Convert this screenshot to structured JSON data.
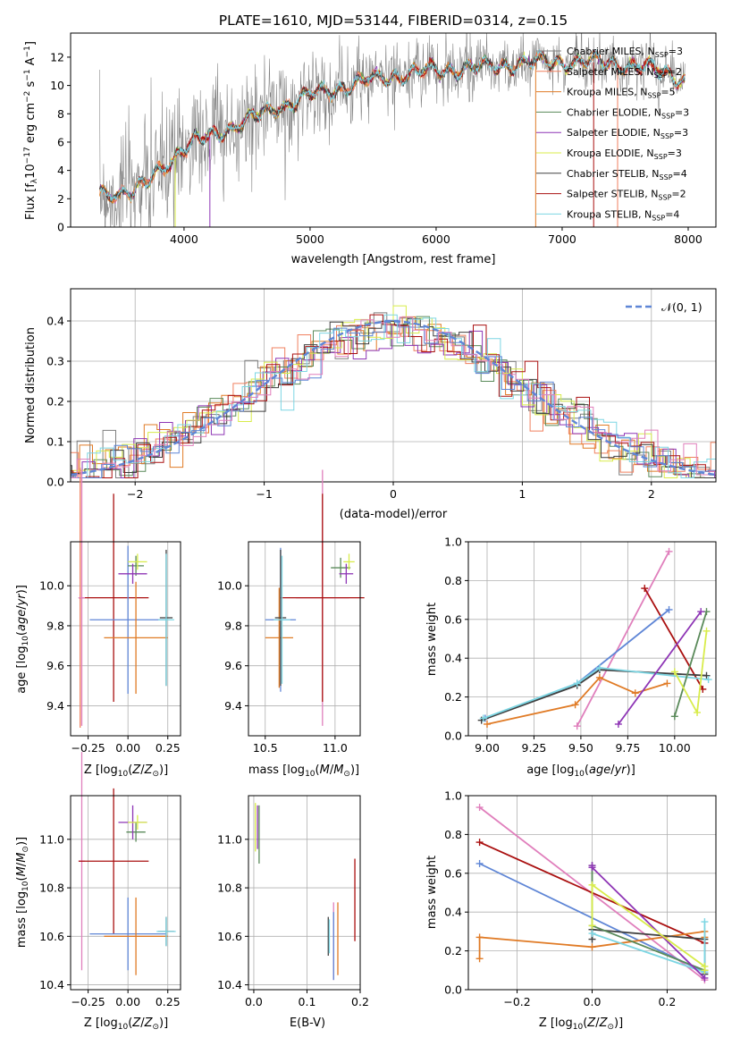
{
  "colors": {
    "Chabrier MILES": "#7f7f7f",
    "Salpeter MILES": "#f0805f",
    "Kroupa MILES": "#e07b26",
    "Chabrier ELODIE": "#5a8a5a",
    "Salpeter ELODIE": "#8e35b5",
    "Kroupa ELODIE": "#d8ec4a",
    "Chabrier STELIB": "#404040",
    "Salpeter STELIB": "#aa1010",
    "Kroupa STELIB": "#7dd6e3",
    "model_blue": "#5f86d6",
    "model_pink": "#e07fbc",
    "normal": "#5f86d6"
  },
  "chart_data": [
    {
      "id": "spectrum",
      "type": "line",
      "title": "PLATE=1610, MJD=53144, FIBERID=0314, z=0.15",
      "xlabel": "wavelength [Angstrom, rest frame]",
      "ylabel": "Flux [f_λ10^-17 erg cm^-2 s^-1 A^-1]",
      "xlim": [
        3100,
        8220
      ],
      "ylim": [
        0,
        13.7
      ],
      "xticks": [
        "4000",
        "5000",
        "6000",
        "7000",
        "8000"
      ],
      "yticks": [
        "0",
        "2",
        "4",
        "6",
        "8",
        "10",
        "12"
      ],
      "grid": false,
      "legend_position": "top-right",
      "legend": [
        {
          "model": "Chabrier MILES",
          "nssp": "3"
        },
        {
          "model": "Salpeter MILES",
          "nssp": "2"
        },
        {
          "model": "Kroupa MILES",
          "nssp": "5"
        },
        {
          "model": "Chabrier ELODIE",
          "nssp": "3"
        },
        {
          "model": "Salpeter ELODIE",
          "nssp": "3"
        },
        {
          "model": "Kroupa ELODIE",
          "nssp": "3"
        },
        {
          "model": "Chabrier STELIB",
          "nssp": "4"
        },
        {
          "model": "Salpeter STELIB",
          "nssp": "2"
        },
        {
          "model": "Kroupa STELIB",
          "nssp": "4"
        }
      ],
      "continuum": [
        [
          3330,
          2.4
        ],
        [
          3500,
          2.5
        ],
        [
          3600,
          2.5
        ],
        [
          3700,
          3.0
        ],
        [
          3800,
          4.0
        ],
        [
          3900,
          4.8
        ],
        [
          4000,
          5.6
        ],
        [
          4100,
          6.0
        ],
        [
          4300,
          6.8
        ],
        [
          4500,
          7.5
        ],
        [
          4700,
          8.3
        ],
        [
          5000,
          9.3
        ],
        [
          5300,
          10.0
        ],
        [
          5600,
          10.6
        ],
        [
          6000,
          11.1
        ],
        [
          6300,
          11.2
        ],
        [
          6600,
          11.5
        ],
        [
          7000,
          11.7
        ],
        [
          7400,
          11.6
        ],
        [
          7800,
          11.0
        ],
        [
          7970,
          10.4
        ]
      ]
    },
    {
      "id": "residuals",
      "type": "histogram",
      "xlabel": "(data-model)/error",
      "ylabel": "Normed distribution",
      "xlim": [
        -2.5,
        2.5
      ],
      "ylim": [
        0,
        0.48
      ],
      "xticks": [
        "−2",
        "−1",
        "0",
        "1",
        "2"
      ],
      "yticks": [
        "0.0",
        "0.1",
        "0.2",
        "0.3",
        "0.4"
      ],
      "grid": true,
      "legend_position": "top-right",
      "legend_label": "𝒩(0, 1)",
      "bin_width": 0.1
    },
    {
      "id": "age-vs-Z",
      "type": "scatter",
      "xlabel": "Z [log10(Z/Z⊙)]",
      "ylabel": "age [log10(age/yr)]",
      "xlim": [
        -0.36,
        0.33
      ],
      "ylim": [
        9.25,
        10.22
      ],
      "xticks": [
        "−0.25",
        "0.00",
        "0.25"
      ],
      "yticks": [
        "9.4",
        "9.6",
        "9.8",
        "10.0"
      ],
      "grid": true,
      "points": [
        {
          "model": "Salpeter MILES",
          "x": -0.3,
          "y": 9.94,
          "ex": 0.0,
          "ey": 0.65
        },
        {
          "model": "Salpeter STELIB",
          "x": -0.09,
          "y": 9.94,
          "ex": 0.22,
          "ey": 0.52
        },
        {
          "model": "model_pink",
          "x": -0.29,
          "y": 9.94,
          "ex": 0.02,
          "ey": 0.64
        },
        {
          "model": "model_blue",
          "x": 0.0,
          "y": 9.83,
          "ex": 0.24,
          "ey": 0.37
        },
        {
          "model": "Kroupa MILES",
          "x": 0.05,
          "y": 9.74,
          "ex": 0.2,
          "ey": 0.28
        },
        {
          "model": "Chabrier STELIB",
          "x": 0.24,
          "y": 9.84,
          "ex": 0.04,
          "ey": 0.34
        },
        {
          "model": "Kroupa STELIB",
          "x": 0.24,
          "y": 9.83,
          "ex": 0.05,
          "ey": 0.33
        },
        {
          "model": "Chabrier ELODIE",
          "x": 0.05,
          "y": 10.1,
          "ex": 0.05,
          "ey": 0.05
        },
        {
          "model": "Salpeter ELODIE",
          "x": 0.03,
          "y": 10.06,
          "ex": 0.09,
          "ey": 0.05
        },
        {
          "model": "Kroupa ELODIE",
          "x": 0.06,
          "y": 10.12,
          "ex": 0.06,
          "ey": 0.04
        }
      ]
    },
    {
      "id": "age-vs-mass",
      "type": "scatter",
      "xlabel": "mass [log10(M/M⊙)]",
      "ylabel": "",
      "xlim": [
        10.38,
        11.18
      ],
      "ylim": [
        9.25,
        10.22
      ],
      "xticks": [
        "10.5",
        "11.0"
      ],
      "yticks": [
        "9.4",
        "9.6",
        "9.8",
        "10.0"
      ],
      "grid": true,
      "points": [
        {
          "model": "model_pink",
          "x": 10.91,
          "y": 9.94,
          "ex": 0.19,
          "ey": 0.64
        },
        {
          "model": "Salpeter STELIB",
          "x": 10.91,
          "y": 9.94,
          "ex": 0.3,
          "ey": 0.52
        },
        {
          "model": "model_blue",
          "x": 10.61,
          "y": 9.83,
          "ex": 0.11,
          "ey": 0.36
        },
        {
          "model": "Kroupa MILES",
          "x": 10.6,
          "y": 9.74,
          "ex": 0.1,
          "ey": 0.25
        },
        {
          "model": "Chabrier STELIB",
          "x": 10.61,
          "y": 9.84,
          "ex": 0.04,
          "ey": 0.34
        },
        {
          "model": "Kroupa STELIB",
          "x": 10.62,
          "y": 9.83,
          "ex": 0.06,
          "ey": 0.32
        },
        {
          "model": "Chabrier ELODIE",
          "x": 11.04,
          "y": 10.09,
          "ex": 0.07,
          "ey": 0.05
        },
        {
          "model": "Salpeter ELODIE",
          "x": 11.08,
          "y": 10.06,
          "ex": 0.05,
          "ey": 0.05
        },
        {
          "model": "Kroupa ELODIE",
          "x": 11.1,
          "y": 10.12,
          "ex": 0.04,
          "ey": 0.04
        }
      ]
    },
    {
      "id": "weight-vs-age",
      "type": "line",
      "xlabel": "age [log10(age/yr)]",
      "ylabel": "mass weight",
      "xlim": [
        8.9,
        10.22
      ],
      "ylim": [
        0,
        1.0
      ],
      "xticks": [
        "9.00",
        "9.25",
        "9.50",
        "9.75",
        "10.00"
      ],
      "yticks": [
        "0.0",
        "0.2",
        "0.4",
        "0.6",
        "0.8",
        "1.0"
      ],
      "grid": true,
      "series": [
        {
          "model": "model_pink",
          "x": [
            9.48,
            9.97
          ],
          "y": [
            0.05,
            0.95
          ]
        },
        {
          "model": "Salpeter STELIB",
          "x": [
            9.84,
            10.15
          ],
          "y": [
            0.76,
            0.24
          ]
        },
        {
          "model": "model_blue",
          "x": [
            8.99,
            9.48,
            9.97
          ],
          "y": [
            0.09,
            0.27,
            0.65
          ]
        },
        {
          "model": "Kroupa MILES",
          "x": [
            9.0,
            9.47,
            9.6,
            9.79,
            9.96
          ],
          "y": [
            0.06,
            0.16,
            0.3,
            0.22,
            0.27
          ]
        },
        {
          "model": "Chabrier STELIB",
          "x": [
            8.97,
            9.48,
            9.6,
            10.17
          ],
          "y": [
            0.08,
            0.26,
            0.34,
            0.31
          ]
        },
        {
          "model": "Kroupa STELIB",
          "x": [
            8.98,
            9.48,
            9.6,
            10.18
          ],
          "y": [
            0.09,
            0.27,
            0.35,
            0.29
          ]
        },
        {
          "model": "Chabrier ELODIE",
          "x": [
            10.0,
            10.17
          ],
          "y": [
            0.1,
            0.64
          ]
        },
        {
          "model": "Salpeter ELODIE",
          "x": [
            9.7,
            10.14
          ],
          "y": [
            0.06,
            0.64
          ]
        },
        {
          "model": "Kroupa ELODIE",
          "x": [
            10.0,
            10.12,
            10.17
          ],
          "y": [
            0.33,
            0.12,
            0.54
          ]
        }
      ]
    },
    {
      "id": "mass-vs-Z",
      "type": "scatter",
      "xlabel": "Z [log10(Z/Z⊙)]",
      "ylabel": "mass [log10(M/M⊙)]",
      "xlim": [
        -0.36,
        0.33
      ],
      "ylim": [
        10.38,
        11.18
      ],
      "xticks": [
        "−0.25",
        "0.00",
        "0.25"
      ],
      "yticks": [
        "10.4",
        "10.6",
        "10.8",
        "11.0"
      ],
      "grid": true,
      "points": [
        {
          "model": "model_pink",
          "x": -0.29,
          "y": 10.91,
          "ex": 0.02,
          "ey": 0.45
        },
        {
          "model": "Salpeter STELIB",
          "x": -0.09,
          "y": 10.91,
          "ex": 0.22,
          "ey": 0.3
        },
        {
          "model": "model_blue",
          "x": 0.0,
          "y": 10.61,
          "ex": 0.24,
          "ey": 0.15
        },
        {
          "model": "Kroupa MILES",
          "x": 0.05,
          "y": 10.6,
          "ex": 0.2,
          "ey": 0.16
        },
        {
          "model": "Chabrier STELIB",
          "x": 0.24,
          "y": 10.62,
          "ex": 0.05,
          "ey": 0.06
        },
        {
          "model": "Kroupa STELIB",
          "x": 0.24,
          "y": 10.62,
          "ex": 0.06,
          "ey": 0.06
        },
        {
          "model": "Chabrier ELODIE",
          "x": 0.05,
          "y": 11.03,
          "ex": 0.06,
          "ey": 0.04
        },
        {
          "model": "Salpeter ELODIE",
          "x": 0.03,
          "y": 11.07,
          "ex": 0.09,
          "ey": 0.07
        },
        {
          "model": "Kroupa ELODIE",
          "x": 0.06,
          "y": 11.07,
          "ex": 0.06,
          "ey": 0.03
        }
      ]
    },
    {
      "id": "mass-vs-EBV",
      "type": "scatter",
      "xlabel": "E(B-V)",
      "ylabel": "",
      "xlim": [
        -0.01,
        0.2
      ],
      "ylim": [
        10.38,
        11.18
      ],
      "xticks": [
        "0.0",
        "0.1",
        "0.2"
      ],
      "yticks": [
        "10.4",
        "10.6",
        "10.8",
        "11.0"
      ],
      "grid": true,
      "points": [
        {
          "model": "Kroupa ELODIE",
          "x": 0.003,
          "y": 11.05,
          "ex": 0,
          "ey": 0.1
        },
        {
          "model": "Salpeter ELODIE",
          "x": 0.007,
          "y": 11.05,
          "ex": 0,
          "ey": 0.09
        },
        {
          "model": "Chabrier ELODIE",
          "x": 0.01,
          "y": 11.02,
          "ex": 0,
          "ey": 0.12
        },
        {
          "model": "Chabrier STELIB",
          "x": 0.14,
          "y": 10.6,
          "ex": 0,
          "ey": 0.08
        },
        {
          "model": "Kroupa STELIB",
          "x": 0.142,
          "y": 10.6,
          "ex": 0,
          "ey": 0.07
        },
        {
          "model": "model_pink",
          "x": 0.15,
          "y": 10.58,
          "ex": 0,
          "ey": 0.16
        },
        {
          "model": "model_blue",
          "x": 0.15,
          "y": 10.56,
          "ex": 0,
          "ey": 0.14
        },
        {
          "model": "Kroupa MILES",
          "x": 0.158,
          "y": 10.59,
          "ex": 0,
          "ey": 0.15
        },
        {
          "model": "Salpeter STELIB",
          "x": 0.19,
          "y": 10.75,
          "ex": 0,
          "ey": 0.17
        }
      ]
    },
    {
      "id": "weight-vs-Z",
      "type": "line",
      "xlabel": "Z [log10(Z/Z⊙)]",
      "ylabel": "mass weight",
      "xlim": [
        -0.33,
        0.33
      ],
      "ylim": [
        0,
        1.0
      ],
      "xticks": [
        "−0.2",
        "0.0",
        "0.2"
      ],
      "yticks": [
        "0.0",
        "0.2",
        "0.4",
        "0.6",
        "0.8",
        "1.0"
      ],
      "grid": true,
      "series": [
        {
          "model": "model_pink",
          "x": [
            -0.3,
            0.3
          ],
          "y": [
            0.94,
            0.05
          ]
        },
        {
          "model": "Salpeter STELIB",
          "x": [
            -0.3,
            0.3
          ],
          "y": [
            0.76,
            0.24
          ]
        },
        {
          "model": "model_blue",
          "x": [
            -0.3,
            0.3
          ],
          "y": [
            0.65,
            0.09
          ]
        },
        {
          "model": "Kroupa MILES",
          "x": [
            -0.3,
            -0.3,
            0.0,
            0.3,
            0.3
          ],
          "y": [
            0.16,
            0.27,
            0.22,
            0.3,
            0.27
          ]
        },
        {
          "model": "Chabrier STELIB",
          "x": [
            0.0,
            0.0,
            0.3,
            0.3
          ],
          "y": [
            0.26,
            0.31,
            0.26,
            0.08
          ]
        },
        {
          "model": "Kroupa STELIB",
          "x": [
            0.0,
            0.3,
            0.3
          ],
          "y": [
            0.29,
            0.09,
            0.35
          ]
        },
        {
          "model": "Chabrier ELODIE",
          "x": [
            0.0,
            0.0,
            0.3
          ],
          "y": [
            0.64,
            0.33,
            0.1
          ]
        },
        {
          "model": "Salpeter ELODIE",
          "x": [
            0.0,
            0.0,
            0.3
          ],
          "y": [
            0.64,
            0.63,
            0.06
          ]
        },
        {
          "model": "Kroupa ELODIE",
          "x": [
            0.0,
            0.0,
            0.3,
            0.3
          ],
          "y": [
            0.33,
            0.54,
            0.12,
            0.1
          ]
        }
      ]
    }
  ]
}
